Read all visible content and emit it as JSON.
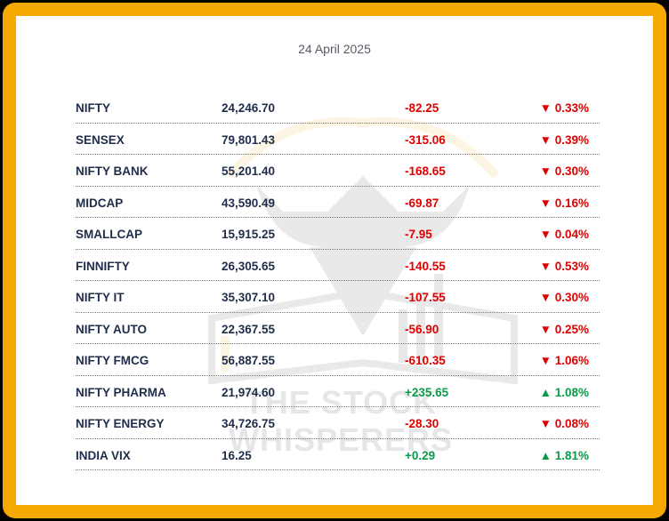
{
  "date": "24 April 2025",
  "watermark": "THE STOCK WHISPERERS",
  "colors": {
    "border": "#f5a800",
    "negative": "#e10000",
    "positive": "#0a9a49",
    "text": "#1f2d4a"
  },
  "rows": [
    {
      "name": "NIFTY",
      "value": "24,246.70",
      "change": "-82.25",
      "pct": "▼ 0.33%",
      "dir": "neg"
    },
    {
      "name": "SENSEX",
      "value": "79,801.43",
      "change": "-315.06",
      "pct": "▼ 0.39%",
      "dir": "neg"
    },
    {
      "name": "NIFTY BANK",
      "value": "55,201.40",
      "change": "-168.65",
      "pct": "▼ 0.30%",
      "dir": "neg"
    },
    {
      "name": "MIDCAP",
      "value": "43,590.49",
      "change": "-69.87",
      "pct": "▼ 0.16%",
      "dir": "neg"
    },
    {
      "name": "SMALLCAP",
      "value": "15,915.25",
      "change": "-7.95",
      "pct": "▼ 0.04%",
      "dir": "neg"
    },
    {
      "name": "FINNIFTY",
      "value": "26,305.65",
      "change": "-140.55",
      "pct": "▼ 0.53%",
      "dir": "neg"
    },
    {
      "name": "NIFTY IT",
      "value": "35,307.10",
      "change": "-107.55",
      "pct": "▼ 0.30%",
      "dir": "neg"
    },
    {
      "name": "NIFTY AUTO",
      "value": "22,367.55",
      "change": "-56.90",
      "pct": "▼ 0.25%",
      "dir": "neg"
    },
    {
      "name": "NIFTY FMCG",
      "value": "56,887.55",
      "change": "-610.35",
      "pct": "▼ 1.06%",
      "dir": "neg"
    },
    {
      "name": "NIFTY PHARMA",
      "value": "21,974.60",
      "change": "+235.65",
      "pct": "▲ 1.08%",
      "dir": "pos"
    },
    {
      "name": "NIFTY ENERGY",
      "value": "34,726.75",
      "change": "-28.30",
      "pct": "▼ 0.08%",
      "dir": "neg"
    },
    {
      "name": "INDIA VIX",
      "value": "16.25",
      "change": "+0.29",
      "pct": "▲ 1.81%",
      "dir": "pos"
    }
  ]
}
